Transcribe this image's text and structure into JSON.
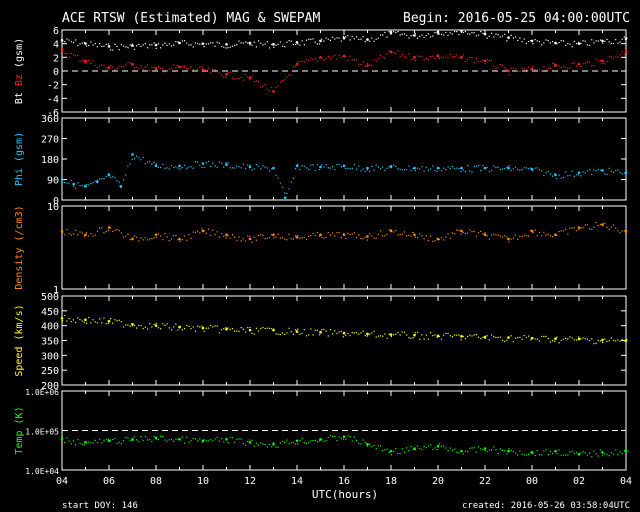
{
  "header": {
    "title": "ACE RTSW (Estimated) MAG & SWEPAM",
    "begin": "Begin: 2016-05-25 04:00:00UTC"
  },
  "footer": {
    "start_doy": "start DOY: 146",
    "created": "created: 2016-05-26 03:58:04UTC"
  },
  "colors": {
    "background": "#000000",
    "axes": "#ffffff",
    "bt": "#ffffff",
    "bz": "#ff2020",
    "phi": "#1ec8ff",
    "density": "#ff8c00",
    "speed": "#ffff00",
    "temp": "#00ff00"
  },
  "chart_data": [
    {
      "type": "scatter",
      "ylabel_parts": [
        "Bt",
        "Bz",
        "(gsm)"
      ],
      "ylim": [
        -6,
        6
      ],
      "yticks": [
        "6",
        "4",
        "2",
        "0",
        "-2",
        "-4",
        "-6"
      ],
      "xlim": [
        4,
        28
      ],
      "reference_line": 0,
      "series": [
        {
          "name": "Bt",
          "color": "#ffffff",
          "x": [
            4,
            5,
            6,
            7,
            8,
            9,
            10,
            11,
            12,
            13,
            14,
            15,
            16,
            17,
            18,
            19,
            20,
            21,
            22,
            23,
            24,
            25,
            26,
            27,
            28
          ],
          "y": [
            4.5,
            4.0,
            3.6,
            3.7,
            3.8,
            4.1,
            4.0,
            3.9,
            4.1,
            3.9,
            4.2,
            4.4,
            4.8,
            4.6,
            5.6,
            5.2,
            5.7,
            5.9,
            5.4,
            4.9,
            4.4,
            4.1,
            4.0,
            4.4,
            4.7
          ]
        },
        {
          "name": "Bz",
          "color": "#ff2020",
          "x": [
            4,
            5,
            6,
            7,
            8,
            9,
            10,
            11,
            12,
            13,
            14,
            15,
            16,
            17,
            18,
            19,
            20,
            21,
            22,
            23,
            24,
            25,
            26,
            27,
            28
          ],
          "y": [
            3.0,
            1.5,
            0.5,
            1.0,
            0.3,
            0.6,
            0.2,
            -0.5,
            -1.0,
            -3.0,
            1.0,
            2.0,
            2.2,
            0.8,
            2.8,
            2.0,
            2.2,
            2.0,
            1.5,
            0.0,
            0.3,
            0.8,
            1.0,
            1.5,
            3.0
          ]
        }
      ]
    },
    {
      "type": "scatter",
      "ylabel_parts": [
        "Phi",
        "(gsm)"
      ],
      "ylim": [
        0,
        360
      ],
      "yticks": [
        "360",
        "270",
        "180",
        "90",
        "0"
      ],
      "xlim": [
        4,
        28
      ],
      "series": [
        {
          "name": "Phi",
          "color": "#1ec8ff",
          "x": [
            4,
            4.5,
            5,
            5.5,
            6,
            6.5,
            7,
            8,
            9,
            10,
            11,
            12,
            13,
            13.5,
            14,
            15,
            16,
            17,
            18,
            19,
            20,
            21,
            22,
            23,
            24,
            25,
            26,
            27,
            28
          ],
          "y": [
            90,
            70,
            60,
            80,
            110,
            60,
            200,
            150,
            150,
            160,
            155,
            145,
            140,
            10,
            150,
            145,
            150,
            140,
            145,
            140,
            140,
            140,
            140,
            140,
            135,
            110,
            120,
            130,
            120
          ]
        }
      ]
    },
    {
      "type": "scatter",
      "ylabel_parts": [
        "Density",
        "(/cm3)"
      ],
      "ylim": [
        1,
        10
      ],
      "yscale": "log",
      "yticks": [
        "10",
        "1"
      ],
      "xlim": [
        4,
        28
      ],
      "series": [
        {
          "name": "Density",
          "color": "#ff8c00",
          "x": [
            4,
            5,
            6,
            7,
            8,
            9,
            10,
            11,
            12,
            13,
            14,
            15,
            16,
            17,
            18,
            19,
            20,
            21,
            22,
            23,
            24,
            25,
            26,
            27,
            28
          ],
          "y": [
            5.0,
            4.5,
            5.5,
            4.0,
            4.5,
            4.0,
            5.0,
            4.5,
            4.0,
            4.5,
            4.2,
            4.5,
            4.5,
            4.3,
            5.0,
            4.5,
            4.0,
            5.0,
            4.5,
            4.0,
            5.0,
            4.5,
            5.5,
            6.0,
            5.0
          ]
        }
      ]
    },
    {
      "type": "scatter",
      "ylabel_parts": [
        "Speed",
        "(km/s)"
      ],
      "ylim": [
        200,
        500
      ],
      "yticks": [
        "500",
        "450",
        "400",
        "350",
        "300",
        "250",
        "200"
      ],
      "xlim": [
        4,
        28
      ],
      "series": [
        {
          "name": "Speed",
          "color": "#ffff00",
          "x": [
            4,
            5,
            6,
            7,
            8,
            9,
            10,
            11,
            12,
            13,
            14,
            15,
            16,
            17,
            18,
            19,
            20,
            21,
            22,
            23,
            24,
            25,
            26,
            27,
            28
          ],
          "y": [
            425,
            420,
            415,
            405,
            400,
            395,
            392,
            388,
            385,
            385,
            380,
            378,
            375,
            372,
            370,
            368,
            366,
            364,
            362,
            360,
            358,
            356,
            355,
            352,
            350
          ]
        }
      ]
    },
    {
      "type": "scatter",
      "ylabel_parts": [
        "Temp",
        "(K)"
      ],
      "ylim": [
        10000,
        1000000
      ],
      "yscale": "log",
      "yticks": [
        "1.0E+06",
        "1.0E+05",
        "1.0E+04"
      ],
      "xlim": [
        4,
        28
      ],
      "reference_line": 100000,
      "series": [
        {
          "name": "Temp",
          "color": "#00ff00",
          "x": [
            4,
            5,
            6,
            7,
            8,
            9,
            10,
            11,
            12,
            13,
            14,
            15,
            16,
            17,
            18,
            19,
            20,
            21,
            22,
            23,
            24,
            25,
            26,
            27,
            28
          ],
          "y": [
            60000,
            50000,
            55000,
            60000,
            65000,
            60000,
            55000,
            60000,
            50000,
            45000,
            55000,
            60000,
            70000,
            45000,
            30000,
            35000,
            40000,
            30000,
            35000,
            30000,
            28000,
            30000,
            25000,
            28000,
            30000
          ]
        }
      ]
    }
  ],
  "x_axis": {
    "label": "UTC(hours)",
    "ticks": [
      "04",
      "06",
      "08",
      "10",
      "12",
      "14",
      "16",
      "18",
      "20",
      "22",
      "00",
      "02",
      "04"
    ]
  }
}
